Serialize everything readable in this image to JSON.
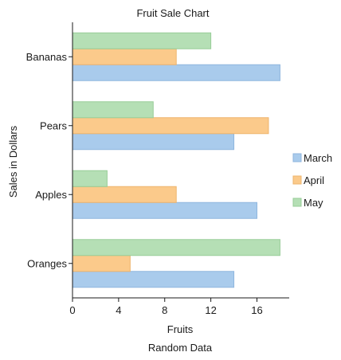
{
  "chart_data": {
    "type": "bar",
    "orientation": "horizontal",
    "title": "Fruit Sale Chart",
    "subtitle": "Random Data",
    "xlabel": "Fruits",
    "ylabel": "Sales in Dollars",
    "categories": [
      "Oranges",
      "Apples",
      "Pears",
      "Bananas"
    ],
    "series": [
      {
        "name": "March",
        "values": [
          14,
          16,
          14,
          18
        ],
        "color": "#a9cbec",
        "stroke": "#8fb6de"
      },
      {
        "name": "April",
        "values": [
          5,
          9,
          17,
          9
        ],
        "color": "#fbca8b",
        "stroke": "#eeb46d"
      },
      {
        "name": "May",
        "values": [
          18,
          3,
          7,
          12
        ],
        "color": "#b5dfb5",
        "stroke": "#98cd98"
      }
    ],
    "xlim": [
      0,
      18.8
    ],
    "xticks": [
      0,
      4,
      8,
      12,
      16
    ],
    "grid": false,
    "legend": "right"
  }
}
